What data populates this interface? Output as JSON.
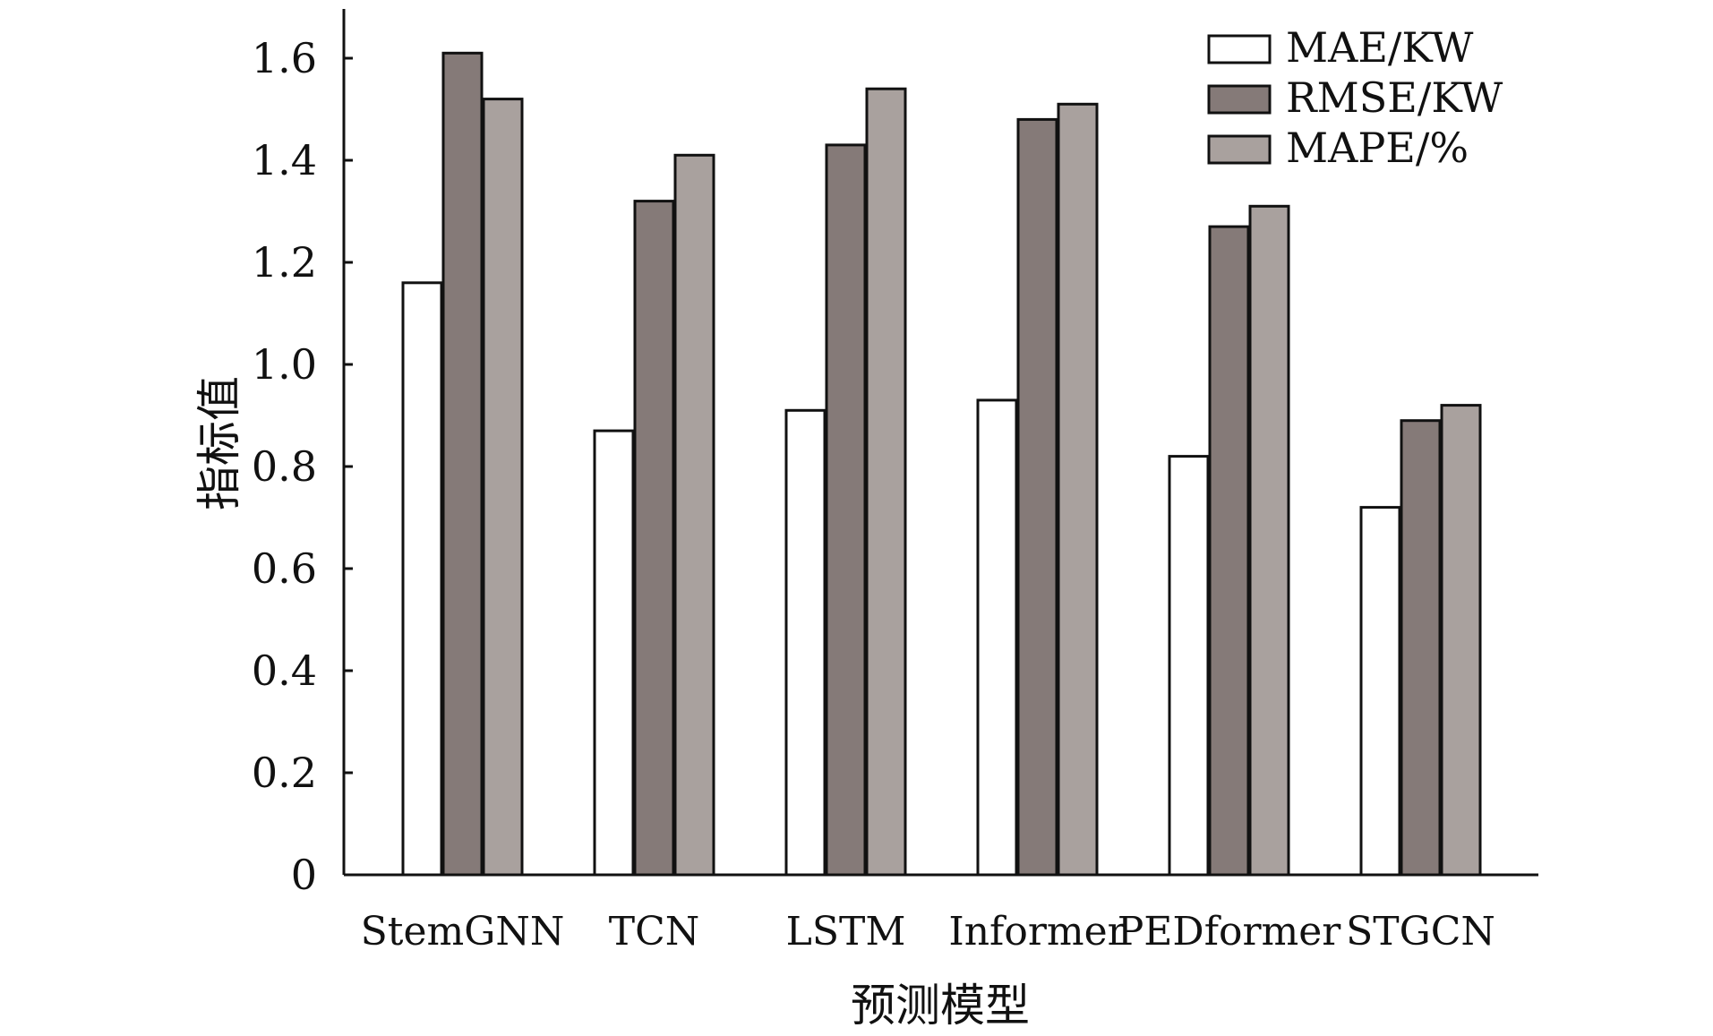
{
  "chart_data": {
    "type": "bar",
    "categories": [
      "StemGNN",
      "TCN",
      "LSTM",
      "Informer",
      "PEDformer",
      "STGCN"
    ],
    "series": [
      {
        "name": "MAE/KW",
        "color": "#ffffff",
        "values": [
          1.16,
          0.87,
          0.91,
          0.93,
          0.82,
          0.72
        ]
      },
      {
        "name": "RMSE/KW",
        "color": "#857a78",
        "values": [
          1.61,
          1.32,
          1.43,
          1.48,
          1.27,
          0.89
        ]
      },
      {
        "name": "MAPE/%",
        "color": "#a9a19e",
        "values": [
          1.52,
          1.41,
          1.54,
          1.51,
          1.31,
          0.92
        ]
      }
    ],
    "xlabel": "预测模型",
    "ylabel": "指标值",
    "ylim": [
      0,
      1.7
    ],
    "yticks": [
      0,
      0.2,
      0.4,
      0.6,
      0.8,
      1.0,
      1.2,
      1.4,
      1.6
    ],
    "ytick_labels": [
      "0",
      "0.2",
      "0.4",
      "0.6",
      "0.8",
      "1.0",
      "1.2",
      "1.4",
      "1.6"
    ],
    "grid": false,
    "legend_position": "top-right"
  }
}
